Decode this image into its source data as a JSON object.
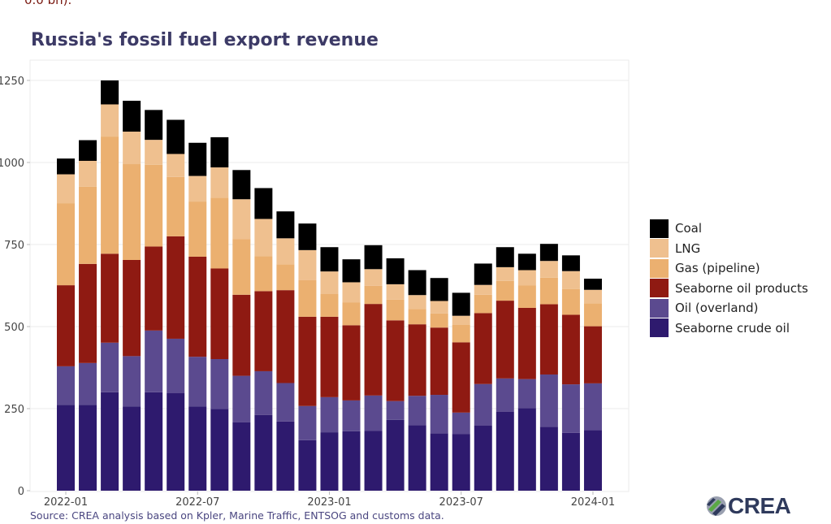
{
  "header": {
    "cut_text": "0.0 bn).",
    "title": "Russia's fossil fuel export revenue"
  },
  "source": "Source: CREA analysis based on Kpler, Marine Traffic, ENTSOG and customs data.",
  "logo": {
    "text": "CREA",
    "icon": "crea-logo-icon"
  },
  "chart_data": {
    "type": "bar",
    "stacked": true,
    "title": "Russia's fossil fuel export revenue",
    "xlabel": "",
    "ylabel": "",
    "ylim": [
      0,
      1300
    ],
    "yticks": [
      0,
      250,
      500,
      750,
      1000,
      1250
    ],
    "xtick_labels": [
      "2022-01",
      "2022-07",
      "2023-01",
      "2023-07",
      "2024-01"
    ],
    "xtick_month_index": [
      0,
      6,
      12,
      18,
      24
    ],
    "grid": true,
    "legend_position": "right",
    "categories": [
      "2022-01",
      "2022-02",
      "2022-03",
      "2022-04",
      "2022-05",
      "2022-06",
      "2022-07",
      "2022-08",
      "2022-09",
      "2022-10",
      "2022-11",
      "2022-12",
      "2023-01",
      "2023-02",
      "2023-03",
      "2023-04",
      "2023-05",
      "2023-06",
      "2023-07",
      "2023-08",
      "2023-09",
      "2023-10",
      "2023-11",
      "2023-12",
      "2024-01"
    ],
    "series": [
      {
        "name": "Seaborne crude oil",
        "color": "#2e1a6e",
        "values": [
          261,
          261,
          300,
          257,
          300,
          297,
          257,
          249,
          208,
          231,
          211,
          154,
          178,
          181,
          182,
          216,
          200,
          175,
          173,
          198,
          241,
          252,
          195,
          176,
          185
        ]
      },
      {
        "name": "Oil (overland)",
        "color": "#5b4a8f",
        "values": [
          118,
          128,
          151,
          153,
          188,
          166,
          151,
          152,
          142,
          133,
          117,
          104,
          107,
          94,
          108,
          57,
          89,
          117,
          65,
          127,
          101,
          88,
          159,
          148,
          142
        ]
      },
      {
        "name": "Seaborne oil products",
        "color": "#8f1a12",
        "values": [
          247,
          302,
          271,
          293,
          256,
          312,
          305,
          276,
          247,
          244,
          283,
          272,
          245,
          229,
          279,
          246,
          218,
          205,
          214,
          216,
          237,
          217,
          214,
          212,
          174
        ]
      },
      {
        "name": "Gas (pipeline)",
        "color": "#ebb070",
        "values": [
          250,
          235,
          357,
          292,
          249,
          181,
          168,
          216,
          170,
          106,
          79,
          112,
          69,
          70,
          55,
          63,
          47,
          43,
          53,
          56,
          60,
          68,
          81,
          78,
          70
        ]
      },
      {
        "name": "LNG",
        "color": "#efc08f",
        "values": [
          88,
          79,
          98,
          99,
          76,
          70,
          78,
          92,
          121,
          114,
          79,
          91,
          69,
          61,
          51,
          47,
          42,
          38,
          28,
          30,
          42,
          47,
          51,
          55,
          41
        ]
      },
      {
        "name": "Coal",
        "color": "#000000",
        "values": [
          48,
          63,
          73,
          94,
          91,
          104,
          101,
          92,
          89,
          94,
          82,
          81,
          74,
          70,
          73,
          79,
          76,
          70,
          70,
          65,
          61,
          50,
          52,
          48,
          34
        ]
      }
    ],
    "legend_order": [
      "Coal",
      "LNG",
      "Gas (pipeline)",
      "Seaborne oil products",
      "Oil (overland)",
      "Seaborne crude oil"
    ]
  }
}
